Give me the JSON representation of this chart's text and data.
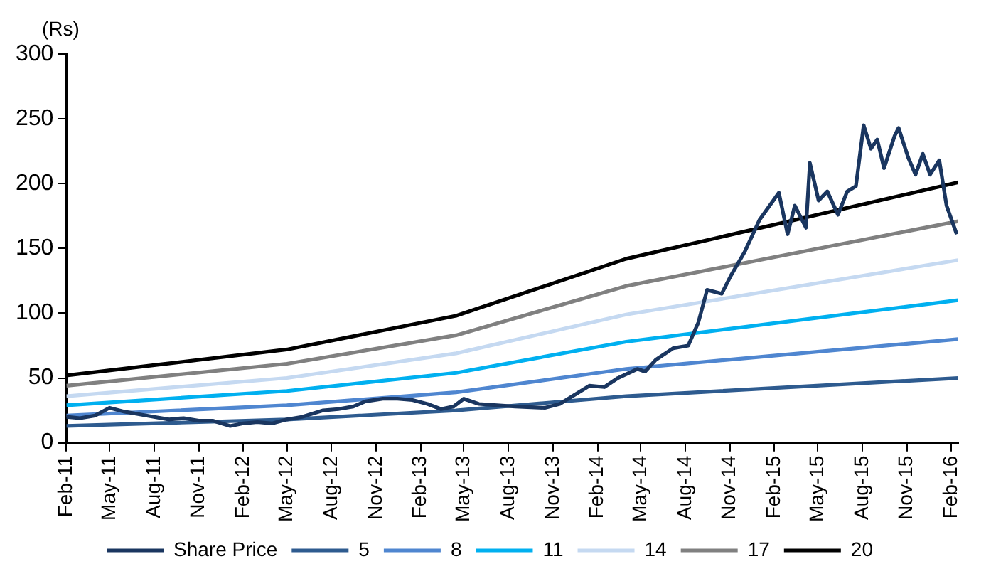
{
  "chart_data": {
    "type": "line",
    "ylabel": "(Rs)",
    "xlim": [
      "2011-02-01",
      "2016-02-15"
    ],
    "ylim": [
      0,
      300
    ],
    "yticks": [
      0,
      50,
      100,
      150,
      200,
      250,
      300
    ],
    "xticks": [
      {
        "value": "2011-02-01",
        "label": "Feb-11"
      },
      {
        "value": "2011-05-01",
        "label": "May-11"
      },
      {
        "value": "2011-08-01",
        "label": "Aug-11"
      },
      {
        "value": "2011-11-01",
        "label": "Nov-11"
      },
      {
        "value": "2012-02-01",
        "label": "Feb-12"
      },
      {
        "value": "2012-05-01",
        "label": "May-12"
      },
      {
        "value": "2012-08-01",
        "label": "Aug-12"
      },
      {
        "value": "2012-11-01",
        "label": "Nov-12"
      },
      {
        "value": "2013-02-01",
        "label": "Feb-13"
      },
      {
        "value": "2013-05-01",
        "label": "May-13"
      },
      {
        "value": "2013-08-01",
        "label": "Aug-13"
      },
      {
        "value": "2013-11-01",
        "label": "Nov-13"
      },
      {
        "value": "2014-02-01",
        "label": "Feb-14"
      },
      {
        "value": "2014-05-01",
        "label": "May-14"
      },
      {
        "value": "2014-08-01",
        "label": "Aug-14"
      },
      {
        "value": "2014-11-01",
        "label": "Nov-14"
      },
      {
        "value": "2015-02-01",
        "label": "Feb-15"
      },
      {
        "value": "2015-05-01",
        "label": "May-15"
      },
      {
        "value": "2015-08-01",
        "label": "Aug-15"
      },
      {
        "value": "2015-11-01",
        "label": "Nov-15"
      },
      {
        "value": "2016-02-01",
        "label": "Feb-16"
      }
    ],
    "grid": false,
    "legend": "bottom",
    "marker": "none",
    "line_style": "solid",
    "series": [
      {
        "name": "Share Price",
        "color": "#1a3660",
        "x": [
          "2011-02-01",
          "2011-03-01",
          "2011-04-01",
          "2011-05-01",
          "2011-06-01",
          "2011-07-01",
          "2011-08-01",
          "2011-09-01",
          "2011-10-01",
          "2011-11-01",
          "2011-12-01",
          "2012-01-05",
          "2012-02-01",
          "2012-03-01",
          "2012-04-01",
          "2012-05-01",
          "2012-06-01",
          "2012-07-15",
          "2012-08-15",
          "2012-09-15",
          "2012-10-10",
          "2012-11-15",
          "2012-12-15",
          "2013-01-15",
          "2013-02-15",
          "2013-03-15",
          "2013-04-10",
          "2013-05-01",
          "2013-06-01",
          "2013-08-15",
          "2013-10-15",
          "2013-11-15",
          "2014-01-15",
          "2014-02-15",
          "2014-03-15",
          "2014-04-24",
          "2014-05-10",
          "2014-06-01",
          "2014-07-07",
          "2014-08-07",
          "2014-08-28",
          "2014-09-15",
          "2014-10-15",
          "2014-11-03",
          "2014-12-01",
          "2015-01-01",
          "2015-02-10",
          "2015-02-28",
          "2015-03-15",
          "2015-04-07",
          "2015-04-15",
          "2015-05-03",
          "2015-05-21",
          "2015-06-12",
          "2015-07-01",
          "2015-07-19",
          "2015-08-04",
          "2015-08-19",
          "2015-09-01",
          "2015-09-15",
          "2015-10-07",
          "2015-10-15",
          "2015-11-04",
          "2015-11-19",
          "2015-12-04",
          "2015-12-19",
          "2016-01-07",
          "2016-01-22",
          "2016-02-12"
        ],
        "values": [
          20,
          19,
          21,
          27,
          24,
          22,
          20,
          18,
          19,
          17,
          17,
          13,
          15,
          16,
          15,
          18,
          20,
          25,
          26,
          28,
          32,
          34,
          34,
          33,
          30,
          26,
          28,
          34,
          30,
          28,
          27,
          30,
          44,
          43,
          50,
          57,
          55,
          64,
          73,
          75,
          93,
          118,
          115,
          129,
          147,
          172,
          193,
          161,
          183,
          166,
          216,
          187,
          194,
          176,
          194,
          198,
          245,
          227,
          234,
          212,
          237,
          243,
          220,
          207,
          223,
          207,
          218,
          183,
          161
        ]
      },
      {
        "name": "5",
        "color": "#2e5b8f",
        "x": [
          "2011-02-01",
          "2012-05-01",
          "2013-04-15",
          "2014-04-01",
          "2016-02-15"
        ],
        "values": [
          13,
          18,
          25,
          36,
          50
        ]
      },
      {
        "name": "8",
        "color": "#4f86d0",
        "x": [
          "2011-02-01",
          "2012-05-01",
          "2013-04-15",
          "2014-04-01",
          "2016-02-15"
        ],
        "values": [
          21,
          29,
          39,
          57,
          80
        ]
      },
      {
        "name": "11",
        "color": "#00b0f0",
        "x": [
          "2011-02-01",
          "2012-05-01",
          "2013-04-15",
          "2014-04-01",
          "2016-02-15"
        ],
        "values": [
          29,
          40,
          54,
          78,
          110
        ]
      },
      {
        "name": "14",
        "color": "#c5d9f1",
        "x": [
          "2011-02-01",
          "2012-05-01",
          "2013-04-15",
          "2014-04-01",
          "2016-02-15"
        ],
        "values": [
          36,
          50,
          69,
          99,
          141
        ]
      },
      {
        "name": "17",
        "color": "#808080",
        "x": [
          "2011-02-01",
          "2012-05-01",
          "2013-04-15",
          "2014-04-01",
          "2016-02-15"
        ],
        "values": [
          44,
          61,
          83,
          121,
          171
        ]
      },
      {
        "name": "20",
        "color": "#000000",
        "x": [
          "2011-02-01",
          "2012-05-01",
          "2013-04-15",
          "2014-04-01",
          "2016-02-15"
        ],
        "values": [
          52,
          72,
          98,
          142,
          201
        ]
      }
    ]
  }
}
